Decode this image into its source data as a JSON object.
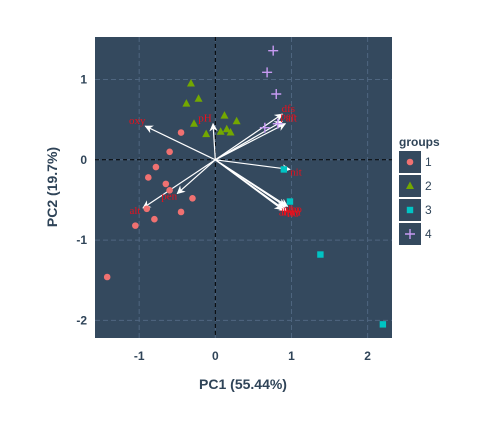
{
  "chart_data": {
    "type": "scatter",
    "subtype": "pca-biplot",
    "xlabel": "PC1 (55.44%)",
    "ylabel": "PC2 (19.7%)",
    "xlim": [
      -1.58,
      2.32
    ],
    "ylim": [
      -2.22,
      1.53
    ],
    "x_ticks": [
      -1,
      0,
      1,
      2
    ],
    "y_ticks": [
      1,
      0,
      -1,
      -2
    ],
    "grid": true,
    "zero_lines": "dashed",
    "colors": {
      "panel": "#34495e",
      "grid": "#4f6680",
      "group1": "#f07171",
      "group2": "#73a800",
      "group3": "#00c4c4",
      "group4": "#c79af2",
      "vector": "#ffffff",
      "var_label": "#e8101c"
    },
    "legend": {
      "title": "groups",
      "position": "right",
      "entries": [
        {
          "label": "1",
          "shape": "circle",
          "color": "#f07171"
        },
        {
          "label": "2",
          "shape": "triangle",
          "color": "#73a800"
        },
        {
          "label": "3",
          "shape": "square",
          "color": "#00c4c4"
        },
        {
          "label": "4",
          "shape": "plus",
          "color": "#c79af2"
        }
      ]
    },
    "series": [
      {
        "name": "1",
        "shape": "circle",
        "color": "#f07171",
        "points": [
          [
            -0.45,
            0.34
          ],
          [
            -0.6,
            0.1
          ],
          [
            -0.78,
            -0.09
          ],
          [
            -0.88,
            -0.22
          ],
          [
            -0.65,
            -0.3
          ],
          [
            -0.6,
            -0.38
          ],
          [
            -0.9,
            -0.61
          ],
          [
            -0.3,
            -0.48
          ],
          [
            -0.45,
            -0.65
          ],
          [
            -0.8,
            -0.74
          ],
          [
            -1.05,
            -0.82
          ],
          [
            -1.42,
            -1.46
          ]
        ]
      },
      {
        "name": "2",
        "shape": "triangle",
        "color": "#73a800",
        "points": [
          [
            -0.32,
            0.95
          ],
          [
            -0.22,
            0.76
          ],
          [
            -0.38,
            0.7
          ],
          [
            0.12,
            0.55
          ],
          [
            0.28,
            0.48
          ],
          [
            -0.28,
            0.45
          ],
          [
            0.15,
            0.38
          ],
          [
            0.07,
            0.35
          ],
          [
            -0.12,
            0.32
          ],
          [
            0.2,
            0.34
          ]
        ]
      },
      {
        "name": "3",
        "shape": "square",
        "color": "#00c4c4",
        "points": [
          [
            0.9,
            -0.12
          ],
          [
            0.98,
            -0.52
          ],
          [
            1.38,
            -1.18
          ],
          [
            2.2,
            -2.05
          ]
        ]
      },
      {
        "name": "4",
        "shape": "plus",
        "color": "#c79af2",
        "points": [
          [
            0.76,
            1.36
          ],
          [
            0.68,
            1.09
          ],
          [
            0.8,
            0.82
          ],
          [
            0.82,
            0.45
          ],
          [
            0.65,
            0.4
          ]
        ]
      }
    ],
    "vectors": [
      {
        "label": "oxy",
        "x": -0.92,
        "y": 0.42
      },
      {
        "label": "pH",
        "x": -0.03,
        "y": 0.45
      },
      {
        "label": "dfs",
        "x": 0.88,
        "y": 0.57
      },
      {
        "label": "alt",
        "x": 0.92,
        "y": 0.45
      },
      {
        "label": "pen",
        "x": 0.88,
        "y": 0.48
      },
      {
        "label": "nit",
        "x": 0.98,
        "y": -0.12
      },
      {
        "label": "pho",
        "x": 0.92,
        "y": -0.58
      },
      {
        "label": "dbo",
        "x": 0.95,
        "y": -0.58
      },
      {
        "label": "amm",
        "x": 0.9,
        "y": -0.62
      },
      {
        "label": "flo",
        "x": 0.94,
        "y": -0.64
      },
      {
        "label": "har",
        "x": 0.88,
        "y": -0.62
      },
      {
        "label": "pen",
        "x": -0.5,
        "y": -0.42
      },
      {
        "label": "alt",
        "x": -0.95,
        "y": -0.6
      }
    ]
  }
}
